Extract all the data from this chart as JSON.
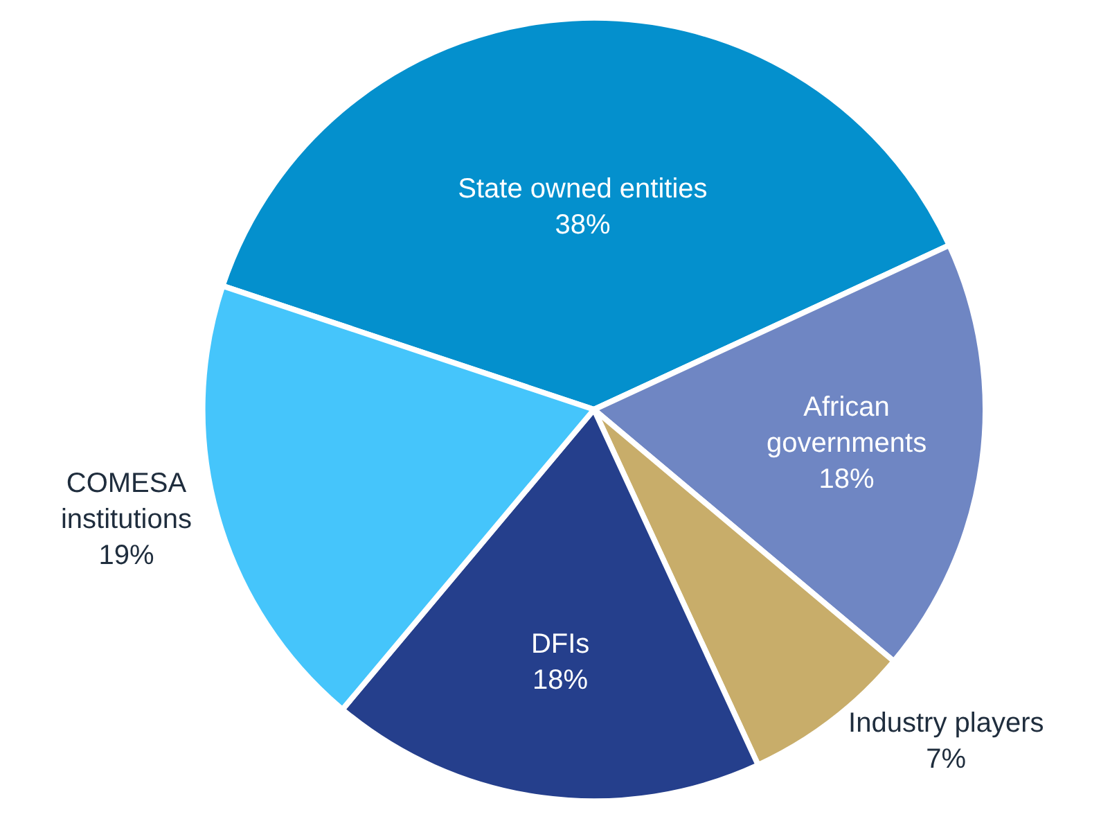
{
  "chart_data": {
    "type": "pie",
    "categories": [
      "State owned entities",
      "African governments",
      "Industry players",
      "DFIs",
      "COMESA institutions"
    ],
    "values": [
      38,
      18,
      7,
      18,
      19
    ],
    "value_labels": [
      "38%",
      "18%",
      "7%",
      "18%",
      "19%"
    ],
    "colors": [
      "#0490cd",
      "#6f86c3",
      "#c8ad6a",
      "#253f8c",
      "#45c5fb"
    ],
    "legend": false
  }
}
